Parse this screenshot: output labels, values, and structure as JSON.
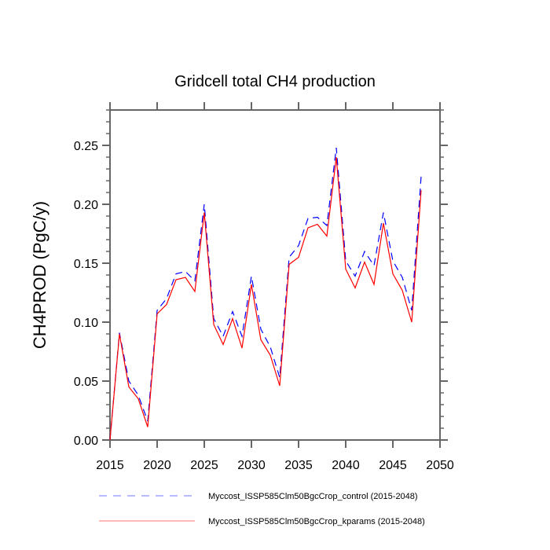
{
  "chart_data": {
    "type": "line",
    "title": "Gridcell total CH4 production",
    "xlabel": "",
    "ylabel": "CH4PROD  (PgC/y)",
    "xlim": [
      2015,
      2050
    ],
    "ylim": [
      0,
      0.28
    ],
    "xticks": [
      2015,
      2020,
      2025,
      2030,
      2035,
      2040,
      2045,
      2050
    ],
    "xtick_labels": [
      "2015",
      "2020",
      "2025",
      "2030",
      "2035",
      "2040",
      "2045",
      "2050"
    ],
    "yticks": [
      0,
      0.05,
      0.1,
      0.15,
      0.2,
      0.25
    ],
    "ytick_labels": [
      "0.00",
      "0.05",
      "0.10",
      "0.15",
      "0.20",
      "0.25"
    ],
    "grid": false,
    "legend_position": "bottom",
    "x": [
      2015,
      2016,
      2017,
      2018,
      2019,
      2020,
      2021,
      2022,
      2023,
      2024,
      2025,
      2026,
      2027,
      2028,
      2029,
      2030,
      2031,
      2032,
      2033,
      2034,
      2035,
      2036,
      2037,
      2038,
      2039,
      2040,
      2041,
      2042,
      2043,
      2044,
      2045,
      2046,
      2047,
      2048
    ],
    "series": [
      {
        "name": "Myccost_ISSP585Clm50BgcCrop_control (2015-2048)",
        "color": "#0000ff",
        "style": "dashed",
        "values": [
          0.0,
          0.091,
          0.05,
          0.038,
          0.016,
          0.11,
          0.12,
          0.141,
          0.143,
          0.135,
          0.2,
          0.103,
          0.088,
          0.109,
          0.088,
          0.139,
          0.094,
          0.079,
          0.053,
          0.155,
          0.165,
          0.188,
          0.189,
          0.182,
          0.248,
          0.152,
          0.139,
          0.16,
          0.148,
          0.193,
          0.152,
          0.138,
          0.11,
          0.224
        ]
      },
      {
        "name": "Myccost_ISSP585Clm50BgcCrop_kparams (2015-2048)",
        "color": "#ff0000",
        "style": "solid",
        "values": [
          0.0,
          0.09,
          0.045,
          0.035,
          0.011,
          0.107,
          0.115,
          0.136,
          0.138,
          0.126,
          0.193,
          0.098,
          0.081,
          0.103,
          0.078,
          0.132,
          0.085,
          0.072,
          0.046,
          0.149,
          0.155,
          0.18,
          0.183,
          0.173,
          0.24,
          0.145,
          0.129,
          0.151,
          0.132,
          0.184,
          0.141,
          0.127,
          0.1,
          0.212
        ]
      }
    ]
  }
}
